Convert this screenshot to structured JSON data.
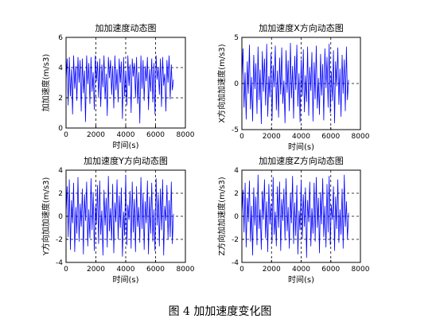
{
  "caption": "图 4  加加速度变化图",
  "line_color": "#0000ff",
  "chart_data": [
    {
      "type": "line",
      "title": "加加速度动态图",
      "xlabel": "时间(s)",
      "ylabel": "加加速度(m/s3)",
      "xlim": [
        0,
        8000
      ],
      "ylim": [
        0,
        6
      ],
      "xticks": [
        0,
        2000,
        4000,
        6000,
        8000
      ],
      "yticks": [
        0,
        2,
        4,
        6
      ],
      "x_extent": [
        0,
        7200
      ],
      "series": [
        {
          "values": [
            3.2,
            4.6,
            1.5,
            4.7,
            2.1,
            3.9,
            0.9,
            4.8,
            2.6,
            4.1,
            1.8,
            4.7,
            3.0,
            4.5,
            1.1,
            4.6,
            2.3,
            3.8,
            0.4,
            4.8,
            2.9,
            4.3,
            1.6,
            4.7,
            2.4,
            3.7,
            1.2,
            4.8,
            3.1,
            4.4,
            2.0,
            4.6,
            1.4,
            4.2,
            2.7,
            4.8,
            1.9,
            3.6,
            0.8,
            4.7,
            3.3,
            4.5,
            2.2,
            4.1,
            1.3,
            4.8,
            2.5,
            3.9,
            1.7,
            4.6,
            3.0,
            4.4,
            0.6,
            4.7,
            2.1,
            3.8,
            1.5,
            4.8,
            2.8,
            4.2,
            1.0,
            4.6,
            3.4,
            4.3,
            2.0,
            4.7,
            1.6,
            3.7,
            0.3,
            4.8,
            2.6,
            4.5,
            1.8,
            4.1,
            3.1,
            4.7,
            1.2,
            3.9,
            2.4,
            4.6,
            1.7,
            4.3,
            0.9,
            4.8,
            3.2,
            4.0,
            2.2,
            4.6,
            1.4,
            4.7,
            2.8,
            3.6,
            1.1,
            4.5,
            3.0,
            4.8,
            1.9,
            4.2,
            2.5,
            3.2
          ]
        }
      ]
    },
    {
      "type": "line",
      "title": "加加速度X方向动态图",
      "xlabel": "时间(s)",
      "ylabel": "X方向加加速度(m/s3)",
      "xlim": [
        0,
        8000
      ],
      "ylim": [
        -5,
        5
      ],
      "xticks": [
        0,
        2000,
        4000,
        6000,
        8000
      ],
      "yticks": [
        -5,
        0,
        5
      ],
      "x_extent": [
        0,
        7200
      ],
      "series": [
        {
          "values": [
            0.5,
            3.8,
            -2.6,
            1.2,
            -3.9,
            2.4,
            -1.1,
            4.2,
            -2.8,
            0.7,
            -4.1,
            3.1,
            -0.6,
            2.2,
            -3.3,
            4.0,
            -1.8,
            1.5,
            -4.4,
            3.5,
            -0.9,
            2.7,
            -2.4,
            4.3,
            -3.6,
            0.8,
            -1.5,
            3.3,
            -4.0,
            2.0,
            -0.4,
            4.1,
            -2.9,
            1.4,
            -3.7,
            2.8,
            -1.2,
            3.9,
            -2.2,
            0.3,
            -4.3,
            3.6,
            -1.0,
            2.5,
            -3.0,
            4.4,
            -1.6,
            1.9,
            -3.8,
            3.0,
            -0.7,
            4.2,
            -2.5,
            1.1,
            -4.2,
            2.6,
            -1.4,
            3.7,
            -3.1,
            0.9,
            -2.0,
            4.0,
            -3.5,
            1.8,
            -0.8,
            3.4,
            -4.1,
            2.3,
            -1.7,
            4.1,
            -2.7,
            0.6,
            -3.4,
            3.2,
            -1.3,
            2.1,
            -4.0,
            3.8,
            -0.5,
            2.9,
            -2.6,
            4.3,
            -3.2,
            1.3,
            -1.9,
            3.6,
            -4.3,
            2.4,
            -0.3,
            3.9,
            -2.3,
            1.6,
            -3.6,
            3.1,
            -1.1,
            2.6,
            -3.0,
            4.0,
            -1.8,
            0.4
          ]
        }
      ]
    },
    {
      "type": "line",
      "title": "加加速度Y方向动态图",
      "xlabel": "时间(s)",
      "ylabel": "Y方向加加速度(m/s3)",
      "xlim": [
        0,
        8000
      ],
      "ylim": [
        -4,
        4
      ],
      "xticks": [
        0,
        2000,
        4000,
        6000,
        8000
      ],
      "yticks": [
        -4,
        -2,
        0,
        2,
        4
      ],
      "x_extent": [
        0,
        7200
      ],
      "series": [
        {
          "values": [
            0.3,
            2.6,
            -1.8,
            3.2,
            -2.9,
            1.4,
            -0.6,
            2.9,
            -3.1,
            0.8,
            -1.5,
            3.4,
            -2.2,
            1.1,
            -0.9,
            2.4,
            -3.3,
            1.9,
            -0.4,
            3.0,
            -2.6,
            0.6,
            -1.9,
            3.3,
            -1.2,
            2.1,
            -3.0,
            0.9,
            -0.7,
            2.7,
            -2.4,
            3.1,
            -1.6,
            0.5,
            -3.4,
            2.3,
            -0.8,
            1.6,
            -2.7,
            3.5,
            -1.3,
            0.7,
            -2.1,
            2.8,
            -3.2,
            1.2,
            -0.5,
            3.2,
            -2.0,
            1.8,
            -1.0,
            2.5,
            -3.5,
            0.4,
            -1.7,
            3.6,
            -2.5,
            1.0,
            -0.3,
            2.2,
            -2.8,
            3.0,
            -1.4,
            1.5,
            -3.1,
            2.6,
            -0.9,
            0.8,
            -2.3,
            3.4,
            -1.1,
            2.0,
            -2.9,
            1.3,
            -0.6,
            3.1,
            -3.3,
            1.7,
            -1.5,
            2.9,
            -2.2,
            0.6,
            -3.0,
            3.3,
            -0.8,
            1.9,
            -2.6,
            2.4,
            -1.2,
            3.2,
            -3.4,
            0.9,
            -0.4,
            2.7,
            -2.0,
            1.4,
            -1.8,
            3.0,
            -2.4,
            0.2
          ]
        }
      ]
    },
    {
      "type": "line",
      "title": "加加速度Z方向动态图",
      "xlabel": "时间(s)",
      "ylabel": "Z方向加加速度(m/s3)",
      "xlim": [
        0,
        8000
      ],
      "ylim": [
        -4,
        4
      ],
      "xticks": [
        0,
        2000,
        4000,
        6000,
        8000
      ],
      "yticks": [
        -4,
        -2,
        0,
        2,
        4
      ],
      "x_extent": [
        0,
        7200
      ],
      "series": [
        {
          "values": [
            0.2,
            2.3,
            -1.4,
            2.9,
            -2.7,
            1.6,
            -0.5,
            3.1,
            -2.2,
            0.9,
            -3.4,
            2.5,
            -0.8,
            1.7,
            -2.5,
            3.6,
            -1.1,
            0.6,
            -2.9,
            2.2,
            -0.3,
            3.2,
            -1.9,
            1.3,
            -3.1,
            2.8,
            -0.7,
            1.1,
            -2.3,
            3.4,
            -1.6,
            0.4,
            -2.6,
            2.6,
            -1.0,
            3.0,
            -3.0,
            1.5,
            -0.4,
            2.4,
            -2.1,
            3.3,
            -1.3,
            0.8,
            -2.8,
            2.0,
            -0.6,
            3.5,
            -2.4,
            1.2,
            -1.7,
            2.7,
            -3.3,
            0.5,
            -1.2,
            3.1,
            -2.0,
            1.9,
            -0.9,
            2.5,
            -3.6,
            1.4,
            -0.5,
            3.0,
            -2.6,
            0.7,
            -1.5,
            2.9,
            -2.2,
            3.4,
            -1.0,
            1.6,
            -3.2,
            2.1,
            -0.7,
            3.3,
            -1.8,
            0.9,
            -2.7,
            2.8,
            -1.4,
            3.5,
            -2.5,
            1.0,
            -0.3,
            2.6,
            -3.0,
            1.7,
            -1.1,
            3.2,
            -2.3,
            0.6,
            -1.6,
            2.4,
            -2.8,
            3.6,
            -0.9,
            1.3,
            -2.0,
            0.3
          ]
        }
      ]
    }
  ]
}
